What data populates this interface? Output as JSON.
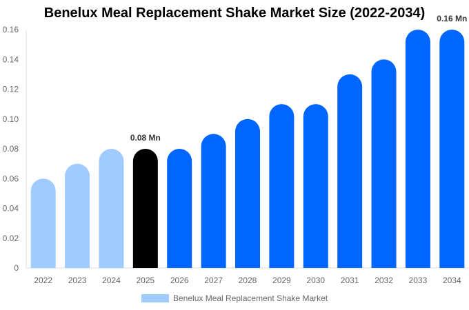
{
  "chart_data": {
    "type": "bar",
    "title": "Benelux Meal Replacement Shake Market Size (2022-2034)",
    "categories": [
      "2022",
      "2023",
      "2024",
      "2025",
      "2026",
      "2027",
      "2028",
      "2029",
      "2030",
      "2031",
      "2032",
      "2033",
      "2034"
    ],
    "series": [
      {
        "name": "Benelux Meal Replacement Shake Market",
        "values": [
          0.06,
          0.07,
          0.08,
          0.08,
          0.08,
          0.09,
          0.1,
          0.11,
          0.11,
          0.13,
          0.14,
          0.16,
          0.16
        ]
      }
    ],
    "yticks": [
      "0",
      "0.02",
      "0.04",
      "0.06",
      "0.08",
      "0.10",
      "0.12",
      "0.14",
      "0.16"
    ],
    "ylim": [
      0,
      0.16
    ],
    "grid": false,
    "legend": "bottom",
    "annotations": [
      {
        "category": "2025",
        "label": "0.08 Mn"
      },
      {
        "category": "2034",
        "label": "0.16 Mn"
      }
    ],
    "colors": {
      "historical": "#a0cbff",
      "current": "#000000",
      "forecast": "#0066ff"
    },
    "bar_color_groups": [
      "historical",
      "historical",
      "historical",
      "current",
      "forecast",
      "forecast",
      "forecast",
      "forecast",
      "forecast",
      "forecast",
      "forecast",
      "forecast",
      "forecast"
    ]
  }
}
